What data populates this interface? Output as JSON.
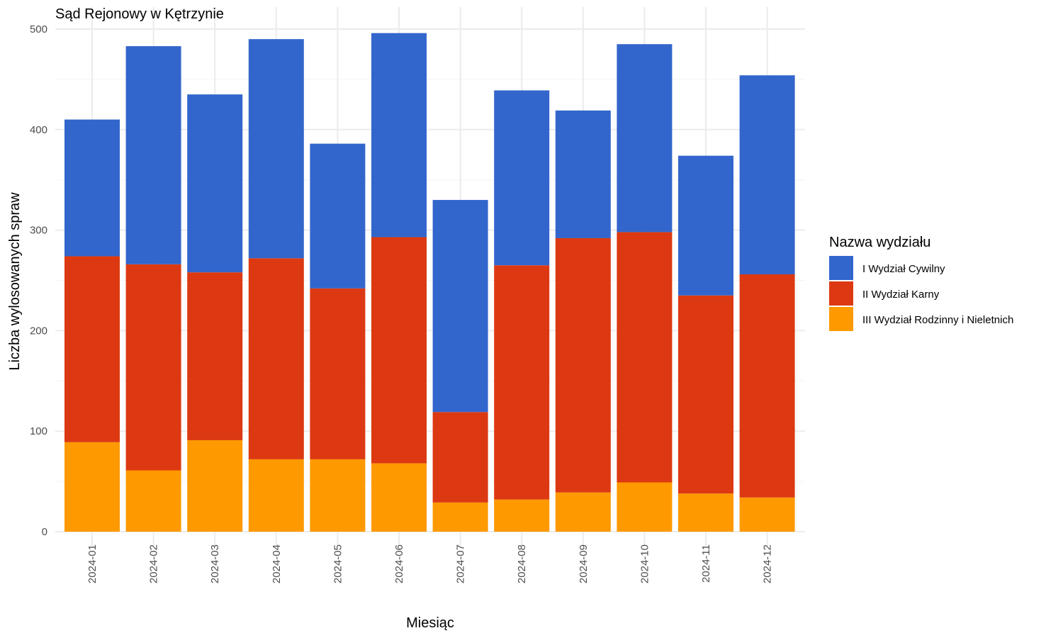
{
  "chart_data": {
    "type": "bar",
    "stacked": true,
    "title": "Sąd Rejonowy w Kętrzynie",
    "xlabel": "Miesiąc",
    "ylabel": "Liczba wylosowanych spraw",
    "ylim": [
      0,
      500
    ],
    "yticks": [
      0,
      100,
      200,
      300,
      400,
      500
    ],
    "grid": true,
    "legend_position": "right",
    "legend_title": "Nazwa wydziału",
    "categories": [
      "2024-01",
      "2024-02",
      "2024-03",
      "2024-04",
      "2024-05",
      "2024-06",
      "2024-07",
      "2024-08",
      "2024-09",
      "2024-10",
      "2024-11",
      "2024-12"
    ],
    "series": [
      {
        "name": "III Wydział Rodzinny i Nieletnich",
        "color": "#FF9900",
        "values": [
          89,
          61,
          91,
          72,
          72,
          68,
          29,
          32,
          39,
          49,
          38,
          34
        ]
      },
      {
        "name": "II Wydział Karny",
        "color": "#DC3912",
        "values": [
          185,
          205,
          167,
          200,
          170,
          225,
          90,
          233,
          253,
          249,
          197,
          222
        ]
      },
      {
        "name": "I Wydział Cywilny",
        "color": "#3366CC",
        "values": [
          136,
          217,
          177,
          218,
          144,
          203,
          211,
          174,
          127,
          187,
          139,
          198
        ]
      }
    ],
    "legend_order": [
      "I Wydział Cywilny",
      "II Wydział Karny",
      "III Wydział Rodzinny i Nieletnich"
    ]
  }
}
